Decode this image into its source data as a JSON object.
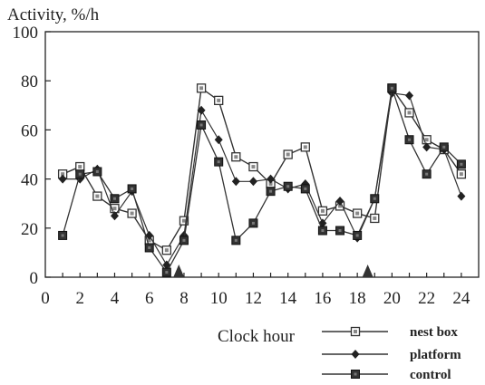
{
  "chart_data": {
    "type": "line",
    "ylabel": "Activity, %/h",
    "xlabel": "Clock hour",
    "xlim": [
      0,
      25
    ],
    "ylim": [
      0,
      100
    ],
    "x_ticks": [
      0,
      2,
      4,
      6,
      8,
      10,
      12,
      14,
      16,
      18,
      20,
      22,
      24
    ],
    "y_ticks": [
      0,
      20,
      40,
      60,
      80,
      100
    ],
    "grid": false,
    "legend_position": "bottom-right",
    "x": [
      1,
      2,
      3,
      4,
      5,
      6,
      7,
      8,
      9,
      10,
      11,
      12,
      13,
      14,
      15,
      16,
      17,
      18,
      19,
      20,
      21,
      22,
      23,
      24
    ],
    "series": [
      {
        "name": "nest box",
        "marker": "open-square",
        "values": [
          42,
          45,
          33,
          28,
          26,
          15,
          11,
          23,
          77,
          72,
          49,
          45,
          38,
          50,
          53,
          27,
          29,
          26,
          24,
          77,
          67,
          56,
          52,
          42
        ]
      },
      {
        "name": "platform",
        "marker": "diamond",
        "values": [
          40,
          40,
          44,
          25,
          35,
          17,
          5,
          17,
          68,
          56,
          39,
          39,
          40,
          36,
          38,
          22,
          31,
          16,
          32,
          75,
          74,
          53,
          52,
          33
        ]
      },
      {
        "name": "control",
        "marker": "filled-square",
        "values": [
          17,
          42,
          43,
          32,
          36,
          12,
          2,
          15,
          62,
          47,
          15,
          22,
          35,
          37,
          36,
          19,
          19,
          17,
          32,
          77,
          56,
          42,
          53,
          46
        ]
      }
    ],
    "markers_on_x_axis": [
      {
        "shape": "triangle",
        "x": 7.7
      },
      {
        "shape": "triangle",
        "x": 18.6
      }
    ]
  }
}
